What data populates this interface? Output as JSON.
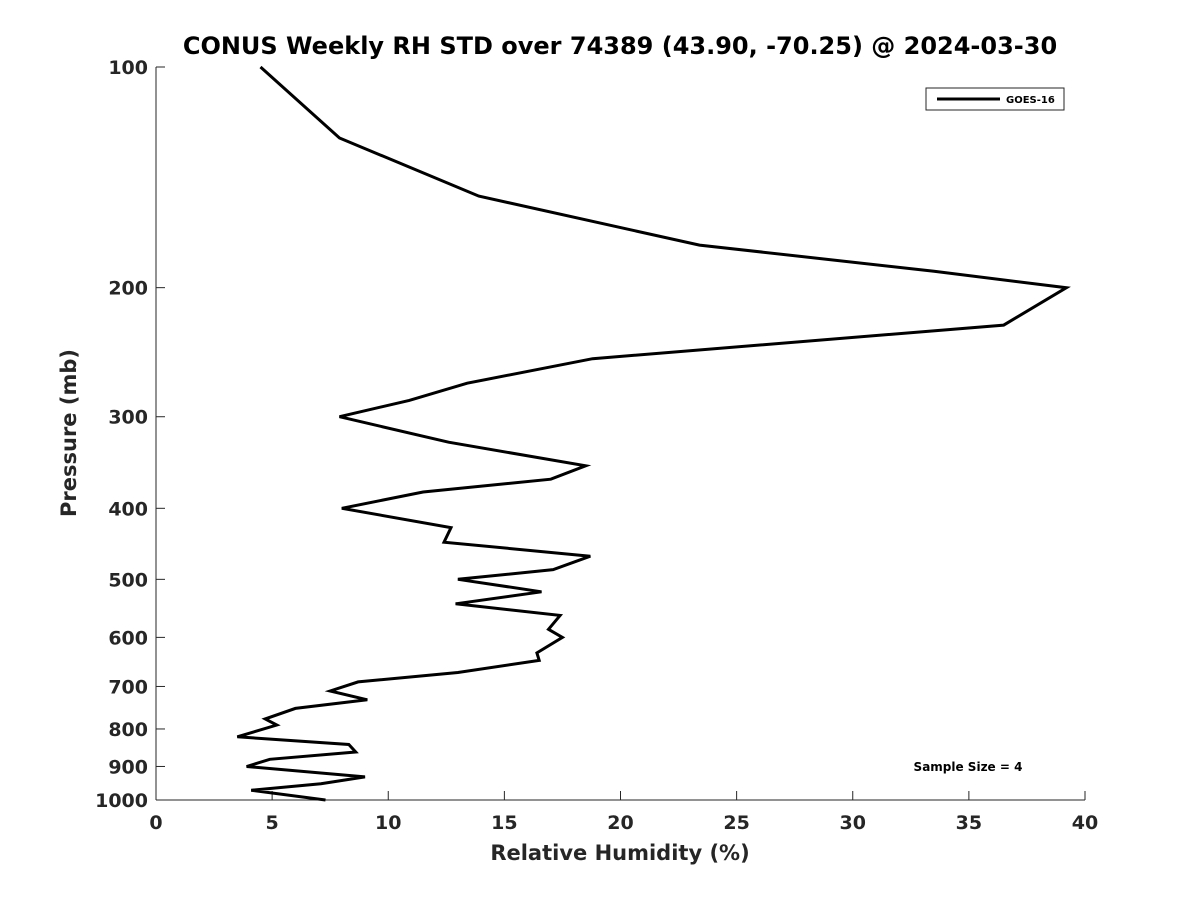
{
  "chart_data": {
    "type": "line",
    "title": "CONUS Weekly RH STD over 74389 (43.90, -70.25) @ 2024-03-30",
    "xlabel": "Relative Humidity (%)",
    "ylabel": "Pressure (mb)",
    "xlim": [
      0,
      40
    ],
    "ylim": [
      100,
      1000
    ],
    "y_scale": "log",
    "y_reversed": true,
    "xticks": [
      0,
      5,
      10,
      15,
      20,
      25,
      30,
      35,
      40
    ],
    "yticks": [
      100,
      200,
      300,
      400,
      500,
      600,
      700,
      800,
      900,
      1000
    ],
    "grid": false,
    "legend_position": "top-right",
    "line_color": "#000000",
    "series": [
      {
        "name": "GOES-16",
        "points": [
          [
            4.5,
            100
          ],
          [
            7.9,
            125
          ],
          [
            13.9,
            150
          ],
          [
            23.4,
            175
          ],
          [
            33.5,
            190
          ],
          [
            39.2,
            200
          ],
          [
            36.5,
            225
          ],
          [
            18.8,
            250
          ],
          [
            13.4,
            270
          ],
          [
            10.9,
            285
          ],
          [
            7.9,
            300
          ],
          [
            12.6,
            325
          ],
          [
            18.5,
            350
          ],
          [
            17.0,
            365
          ],
          [
            11.5,
            380
          ],
          [
            8.0,
            400
          ],
          [
            12.7,
            425
          ],
          [
            12.4,
            445
          ],
          [
            18.7,
            465
          ],
          [
            17.1,
            485
          ],
          [
            13.0,
            500
          ],
          [
            16.6,
            520
          ],
          [
            12.9,
            540
          ],
          [
            17.4,
            560
          ],
          [
            16.9,
            585
          ],
          [
            17.5,
            600
          ],
          [
            16.4,
            630
          ],
          [
            16.5,
            645
          ],
          [
            13.0,
            670
          ],
          [
            8.7,
            690
          ],
          [
            7.5,
            710
          ],
          [
            9.1,
            730
          ],
          [
            6.0,
            750
          ],
          [
            4.7,
            775
          ],
          [
            5.2,
            790
          ],
          [
            3.5,
            820
          ],
          [
            8.3,
            840
          ],
          [
            8.6,
            860
          ],
          [
            4.9,
            880
          ],
          [
            3.9,
            900
          ],
          [
            9.0,
            930
          ],
          [
            7.1,
            950
          ],
          [
            4.1,
            970
          ],
          [
            7.3,
            1000
          ]
        ]
      }
    ],
    "annotations": [
      "Sample Size = 4"
    ]
  }
}
